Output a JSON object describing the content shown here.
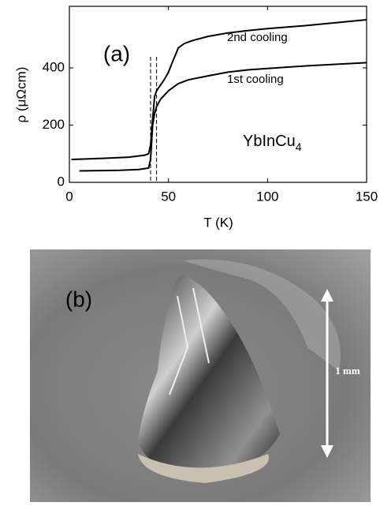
{
  "chart_data": {
    "type": "line",
    "xlabel": "T (K)",
    "ylabel": "ρ (μΩcm)",
    "xlim": [
      0,
      150
    ],
    "xticks": [
      0,
      50,
      100,
      150
    ],
    "ylim": [
      0,
      615
    ],
    "yticks": [
      0,
      200,
      400
    ],
    "vlines": [
      41,
      44
    ],
    "panel_label": "(a)",
    "compound": {
      "text": "YbInCu",
      "subscript": "4"
    },
    "series": [
      {
        "name": "2nd cooling",
        "color": "#000000",
        "x": [
          1,
          10,
          20,
          30,
          38,
          40,
          41,
          42,
          43,
          44,
          46,
          48,
          50,
          52,
          55,
          58,
          62,
          70,
          80,
          90,
          100,
          120,
          150
        ],
        "values": [
          80,
          82,
          85,
          88,
          95,
          100,
          130,
          220,
          300,
          320,
          340,
          360,
          385,
          420,
          470,
          485,
          495,
          510,
          522,
          530,
          537,
          548,
          568
        ]
      },
      {
        "name": "1st cooling",
        "color": "#000000",
        "x": [
          5,
          15,
          25,
          35,
          40,
          41,
          42,
          43,
          44,
          46,
          48,
          50,
          55,
          60,
          70,
          80,
          90,
          100,
          120,
          150
        ],
        "values": [
          40,
          41,
          42,
          45,
          50,
          80,
          200,
          240,
          265,
          290,
          305,
          320,
          345,
          358,
          372,
          385,
          393,
          398,
          407,
          418
        ]
      }
    ]
  },
  "photo": {
    "panel_label": "(b)",
    "scale_label": "1 mm"
  }
}
